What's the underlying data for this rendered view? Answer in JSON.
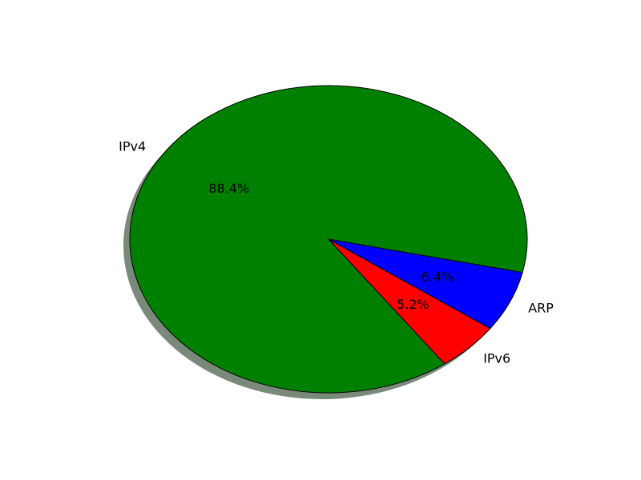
{
  "chart_data": {
    "type": "pie",
    "slices": [
      {
        "label": "IPv4",
        "value": 88.4,
        "pct_label": "88.4%",
        "color": "#008000"
      },
      {
        "label": "IPv6",
        "value": 5.2,
        "pct_label": "5.2%",
        "color": "#ff0000"
      },
      {
        "label": "ARP",
        "value": 6.4,
        "pct_label": "6.4%",
        "color": "#0000ff"
      }
    ],
    "title": "",
    "shadow": true,
    "shadow_color": "#7a8a7a"
  }
}
